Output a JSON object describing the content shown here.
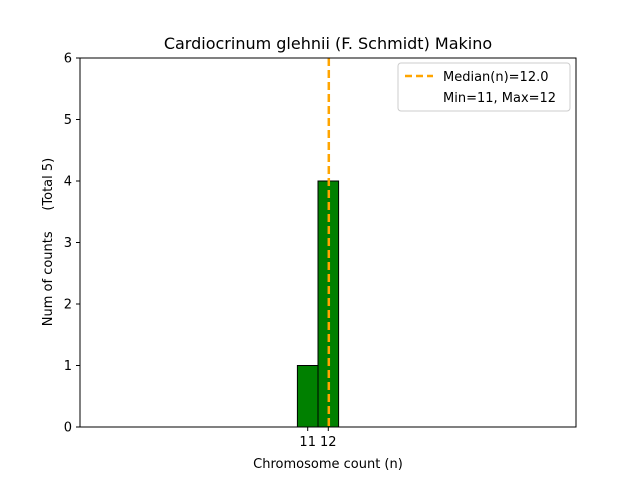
{
  "chart_data": {
    "type": "bar",
    "title": "Cardiocrinum glehnii (F. Schmidt) Makino",
    "xlabel": "Chromosome count (n)",
    "ylabel": "Num of counts     (Total 5)",
    "ylim": [
      0,
      6
    ],
    "yticks": [
      0,
      1,
      2,
      3,
      4,
      5,
      6
    ],
    "xticks": [
      11,
      12
    ],
    "bins": [
      {
        "x": 11,
        "count": 1
      },
      {
        "x": 12,
        "count": 4
      }
    ],
    "median": 12.0,
    "colors": {
      "bar": "#008000",
      "bar_edge": "#000000",
      "median_line": "#ffa500"
    },
    "legend": {
      "location": "upper right",
      "entries": [
        {
          "label": "Median(n)=12.0",
          "style": "dashed-line"
        },
        {
          "label": "Min=11, Max=12",
          "style": "none"
        }
      ]
    },
    "grid": false
  }
}
